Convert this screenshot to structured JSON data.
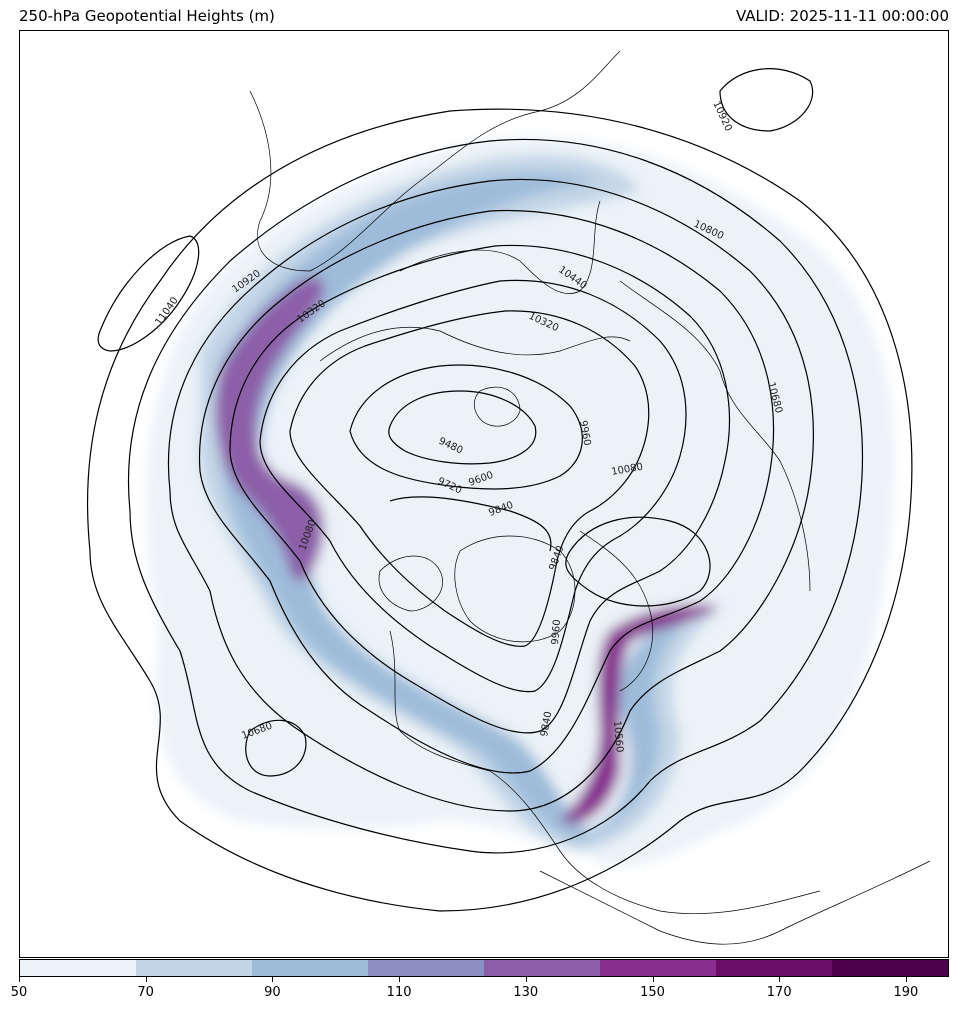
{
  "header": {
    "title": "250-hPa Geopotential Heights (m)",
    "valid": "VALID: 2025-11-11 00:00:00"
  },
  "map": {
    "projection": "north-polar-stereographic",
    "region": "Northern Hemisphere",
    "contour_color": "#000000",
    "coastline_color": "#000000"
  },
  "contour_labels": [
    "10920",
    "11040",
    "10920",
    "10320",
    "10440",
    "10800",
    "10320",
    "10680",
    "9480",
    "9720",
    "9600",
    "9840",
    "9960",
    "10080",
    "10080",
    "10680",
    "9960",
    "10560",
    "9840",
    "10680",
    "9840"
  ],
  "colorbar": {
    "label_values": [
      "50",
      "70",
      "90",
      "110",
      "130",
      "150",
      "170",
      "190"
    ],
    "colors": [
      "#ebf2f8",
      "#c3d5e7",
      "#9ebcda",
      "#8c8fc3",
      "#8c5ea8",
      "#872e8f",
      "#6b0e6a",
      "#4d004b"
    ]
  }
}
